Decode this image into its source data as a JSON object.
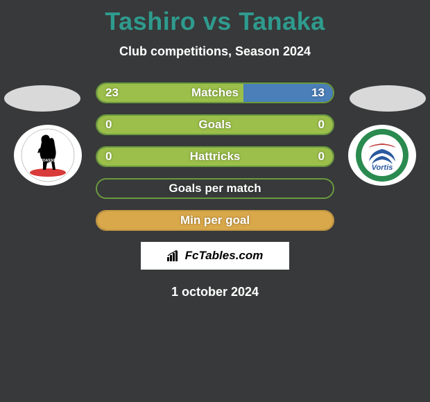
{
  "title": "Tashiro vs Tanaka",
  "title_color": "#2e9b8e",
  "subtitle": "Club competitions, Season 2024",
  "background_color": "#38393a",
  "text_color": "#ffffff",
  "player_ellipse_color": "#d9d9d9",
  "club_logo_bg": "#ffffff",
  "stats": [
    {
      "label": "Matches",
      "left_val": "23",
      "right_val": "13",
      "left_pct": 62,
      "right_pct": 38,
      "left_color": "#9bbf4a",
      "right_color": "#4a7fb9",
      "border_color": "#6a9a3f"
    },
    {
      "label": "Goals",
      "left_val": "0",
      "right_val": "0",
      "left_pct": 100,
      "right_pct": 0,
      "left_color": "#9bbf4a",
      "right_color": "#4a7fb9",
      "border_color": "#6a9a3f"
    },
    {
      "label": "Hattricks",
      "left_val": "0",
      "right_val": "0",
      "left_pct": 100,
      "right_pct": 0,
      "left_color": "#9bbf4a",
      "right_color": "#4a7fb9",
      "border_color": "#6a9a3f"
    },
    {
      "label": "Goals per match",
      "left_val": "",
      "right_val": "",
      "left_pct": 0,
      "right_pct": 0,
      "left_color": "#9bbf4a",
      "right_color": "#4a7fb9",
      "border_color": "#6a9a3f"
    },
    {
      "label": "Min per goal",
      "left_val": "",
      "right_val": "",
      "left_pct": 100,
      "right_pct": 0,
      "left_color": "#d9a84a",
      "right_color": "#4a7fb9",
      "border_color": "#c49842"
    }
  ],
  "brand": "FcTables.com",
  "date": "1 october 2024",
  "left_logo": {
    "bg": "#ffffff",
    "horse_color": "#000000",
    "accent": "#d93a3a"
  },
  "right_logo": {
    "bg": "#ffffff",
    "outer": "#2a8a4f",
    "inner": "#c03a3a",
    "swirl": "#2a5a9f",
    "text": "Vortis"
  }
}
